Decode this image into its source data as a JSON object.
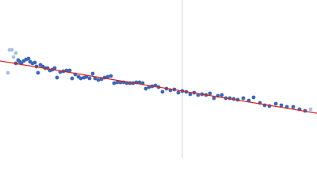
{
  "chart_data": {
    "type": "scatter",
    "xlim": [
      0,
      400
    ],
    "ylim": [
      200,
      0
    ],
    "vline": 230,
    "vline_color": "#c8d4ea",
    "fit": {
      "color": "#d62020",
      "x": [
        0,
        400
      ],
      "y": [
        77,
        143
      ]
    },
    "series": [
      {
        "color": "#aac0e2",
        "x": [
          10,
          12,
          15,
          17,
          20,
          392
        ],
        "y": [
          92,
          63,
          63,
          72,
          67,
          138
        ]
      },
      {
        "color": "#3d67b3",
        "x": [
          20,
          23,
          25,
          27,
          30,
          33,
          36,
          38,
          41,
          44,
          46,
          48,
          51,
          54,
          57,
          60,
          63,
          66,
          69,
          72,
          76,
          80,
          84,
          88,
          91,
          95,
          99,
          102,
          106,
          109,
          113,
          117,
          120,
          124,
          128,
          132,
          136,
          140,
          144,
          148,
          152,
          156,
          160,
          164,
          168,
          172,
          176,
          180,
          184,
          188,
          192,
          196,
          200,
          205,
          210,
          215,
          220,
          225,
          230,
          235,
          240,
          245,
          250,
          255,
          260,
          265,
          270,
          275,
          280,
          285,
          290,
          295,
          300,
          307,
          314,
          320,
          328,
          334,
          340,
          348,
          355,
          362,
          370,
          378,
          385
        ],
        "y": [
          80,
          76,
          78,
          80,
          77,
          75,
          74,
          78,
          80,
          79,
          84,
          92,
          82,
          84,
          86,
          86,
          89,
          88,
          86,
          98,
          91,
          90,
          89,
          89,
          99,
          94,
          97,
          99,
          98,
          97,
          99,
          93,
          99,
          101,
          100,
          98,
          97,
          96,
          105,
          104,
          104,
          104,
          105,
          105,
          105,
          104,
          104,
          105,
          112,
          110,
          109,
          108,
          110,
          116,
          112,
          114,
          113,
          117,
          115,
          116,
          119,
          117,
          120,
          119,
          120,
          118,
          124,
          121,
          120,
          124,
          124,
          125,
          126,
          124,
          127,
          123,
          130,
          133,
          134,
          131,
          133,
          135,
          135,
          138,
          140
        ]
      }
    ]
  }
}
